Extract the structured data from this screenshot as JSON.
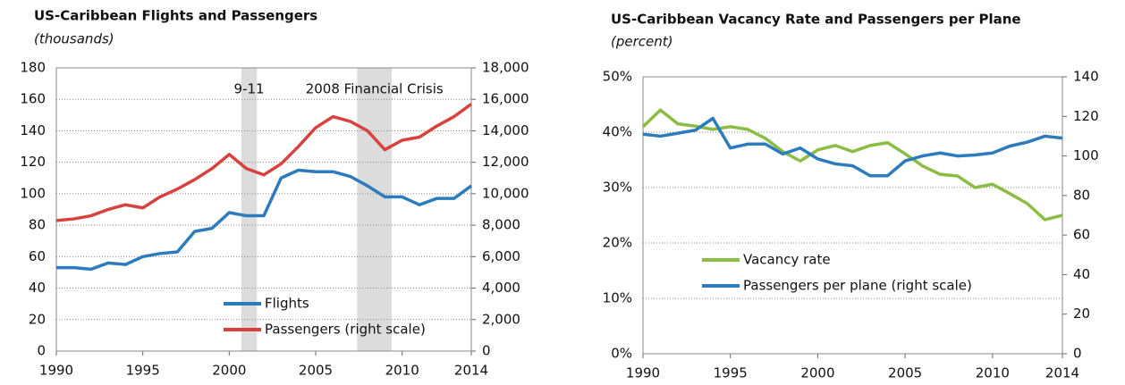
{
  "chart_data": [
    {
      "type": "line",
      "title": "US-Caribbean Flights and Passengers",
      "subtitle": "(thousands)",
      "x": [
        1990,
        1991,
        1992,
        1993,
        1994,
        1995,
        1996,
        1997,
        1998,
        1999,
        2000,
        2001,
        2002,
        2003,
        2004,
        2005,
        2006,
        2007,
        2008,
        2009,
        2010,
        2011,
        2012,
        2013,
        2014
      ],
      "xlim": [
        1990,
        2014
      ],
      "xticks": [
        1990,
        1995,
        2000,
        2005,
        2010,
        2014
      ],
      "ylim": [
        0,
        180
      ],
      "yticks": [
        0,
        20,
        40,
        60,
        80,
        100,
        120,
        140,
        160,
        180
      ],
      "y2lim": [
        0,
        18000
      ],
      "y2ticks": [
        0,
        {
          "value": 2000,
          "label": "2,000"
        },
        {
          "value": 4000,
          "label": "4,000"
        },
        {
          "value": 6000,
          "label": "6,000"
        },
        {
          "value": 8000,
          "label": "8,000"
        },
        {
          "value": 10000,
          "label": "10,000"
        },
        {
          "value": 12000,
          "label": "12,000"
        },
        {
          "value": 14000,
          "label": "14,000"
        },
        {
          "value": 16000,
          "label": "16,000"
        },
        {
          "value": 18000,
          "label": "18,000"
        }
      ],
      "grid": true,
      "legend": "lower right",
      "shaded": [
        {
          "label": "9-11",
          "start": 2000.7,
          "end": 2001.6
        },
        {
          "label": "2008 Financial Crisis",
          "start": 2007.4,
          "end": 2009.4
        }
      ],
      "series": [
        {
          "name": "Flights",
          "color": "#2c7bbd",
          "values": [
            53,
            53,
            52,
            56,
            55,
            60,
            62,
            63,
            76,
            78,
            88,
            86,
            86,
            110,
            115,
            114,
            114,
            111,
            105,
            98,
            98,
            93,
            97,
            97,
            105
          ]
        },
        {
          "name": "Passengers (right scale)",
          "color": "#d8423e",
          "axis": "y2",
          "values": [
            8300,
            8400,
            8600,
            9000,
            9300,
            9100,
            9800,
            10300,
            10900,
            11600,
            12500,
            11600,
            11200,
            11900,
            13000,
            14200,
            14900,
            14600,
            14000,
            12800,
            13400,
            13600,
            14300,
            14900,
            15700
          ]
        }
      ]
    },
    {
      "type": "line",
      "title": "US-Caribbean Vacancy Rate and Passengers per Plane",
      "subtitle": "(percent)",
      "x": [
        1990,
        1991,
        1992,
        1993,
        1994,
        1995,
        1996,
        1997,
        1998,
        1999,
        2000,
        2001,
        2002,
        2003,
        2004,
        2005,
        2006,
        2007,
        2008,
        2009,
        2010,
        2011,
        2012,
        2013,
        2014
      ],
      "xlim": [
        1990,
        2014
      ],
      "xticks": [
        1990,
        1995,
        2000,
        2005,
        2010,
        2014
      ],
      "ylim": [
        0,
        50
      ],
      "yticks": [
        {
          "value": 0,
          "label": "0%"
        },
        {
          "value": 10,
          "label": "10%"
        },
        {
          "value": 20,
          "label": "20%"
        },
        {
          "value": 30,
          "label": "30%"
        },
        {
          "value": 40,
          "label": "40%"
        },
        {
          "value": 50,
          "label": "50%"
        }
      ],
      "y2lim": [
        0,
        140
      ],
      "y2ticks": [
        0,
        20,
        40,
        60,
        80,
        100,
        120,
        140
      ],
      "grid": true,
      "legend": "lower left",
      "series": [
        {
          "name": "Vacancy rate",
          "color": "#8bbd45",
          "values": [
            41,
            44,
            41.5,
            41.1,
            40.5,
            41,
            40.5,
            38.9,
            36.5,
            34.8,
            36.8,
            37.6,
            36.5,
            37.6,
            38.1,
            36.1,
            33.9,
            32.4,
            32.1,
            30,
            30.6,
            28.9,
            27.1,
            24.2,
            25
          ]
        },
        {
          "name": "Passengers per plane (right scale)",
          "color": "#2c7bbd",
          "axis": "y2",
          "values": [
            111,
            110,
            111.5,
            113,
            119,
            104,
            106,
            106,
            101,
            104,
            98.5,
            96,
            95,
            90,
            90,
            97.5,
            100,
            101.5,
            100,
            100.5,
            101.5,
            105,
            107,
            110,
            109
          ]
        }
      ]
    }
  ]
}
